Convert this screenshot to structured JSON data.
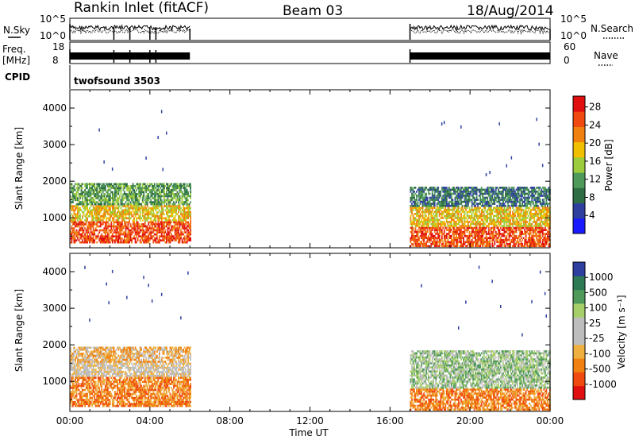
{
  "header": {
    "station": "Rankin Inlet (fitACF)",
    "beam": "Beam 03",
    "date": "18/Aug/2014"
  },
  "noise_panel": {
    "left_label": "N.Sky",
    "right_label": "N.Search",
    "ticks": [
      "10^5",
      "10^0"
    ]
  },
  "freq_panel": {
    "left_label_1": "Freq.",
    "left_label_2": "[MHz]",
    "right_label": "Nave",
    "left_ticks": [
      "18",
      "8"
    ],
    "right_ticks": [
      "60",
      "0"
    ]
  },
  "cpid_panel": {
    "left_label": "CPID",
    "program": "twofsound 3503"
  },
  "x_axis": {
    "label": "Time UT",
    "ticks": [
      "00:00",
      "04:00",
      "08:00",
      "12:00",
      "16:00",
      "20:00",
      "00:00"
    ]
  },
  "colors": {
    "power_scale": [
      "#1a1aff",
      "#2e3fa0",
      "#2f6e45",
      "#4f9a5b",
      "#9ccb3c",
      "#f0c000",
      "#f08010",
      "#f04a10",
      "#e01010"
    ],
    "velocity_scale": [
      "#e01010",
      "#f04a10",
      "#f08010",
      "#f0b040",
      "#bdbdbd",
      "#bdbdbd",
      "#a6cf6a",
      "#4f9a5b",
      "#2e7a55",
      "#2e3fa0"
    ]
  },
  "chart_data": [
    {
      "type": "heatmap",
      "name": "power",
      "ylabel": "Slant Range [km]",
      "y_ticks": [
        "1000",
        "2000",
        "3000",
        "4000"
      ],
      "ylim": [
        180,
        4500
      ],
      "colorbar_label": "Power [dB]",
      "colorbar_ticks": [
        "4",
        "8",
        "12",
        "16",
        "20",
        "24",
        "28"
      ],
      "colorbar_range": [
        0,
        30
      ],
      "data_coverage_hours": [
        [
          0.0,
          6.0
        ],
        [
          17.0,
          24.0
        ]
      ],
      "description_values": {
        "strong_echo_range_km": [
          400,
          2000
        ],
        "peak_power_db": 30
      }
    },
    {
      "type": "heatmap",
      "name": "velocity",
      "ylabel": "Slant Range [km]",
      "y_ticks": [
        "1000",
        "2000",
        "3000",
        "4000"
      ],
      "ylim": [
        180,
        4500
      ],
      "colorbar_label": "Velocity [m s⁻¹]",
      "colorbar_ticks": [
        "1000",
        "500",
        "100",
        "25",
        "-25",
        "-100",
        "-500",
        "-1000"
      ],
      "data_coverage_hours": [
        [
          0.0,
          6.0
        ],
        [
          17.0,
          24.0
        ]
      ]
    }
  ]
}
